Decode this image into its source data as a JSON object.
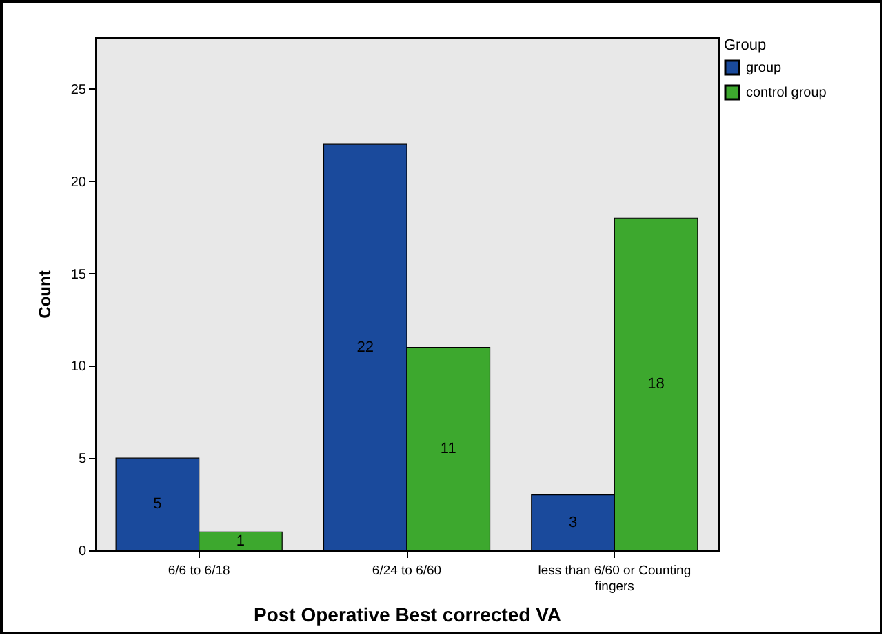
{
  "chart_data": {
    "type": "bar",
    "xlabel": "Post Operative Best corrected VA",
    "ylabel": "Count",
    "legend_title": "Group",
    "categories": [
      "6/6 to 6/18",
      "6/24 to 6/60",
      "less than 6/60 or Counting fingers"
    ],
    "series": [
      {
        "name": "group",
        "color": "#1a4a9c",
        "values": [
          5,
          22,
          3
        ]
      },
      {
        "name": "control group",
        "color": "#3da82e",
        "values": [
          1,
          11,
          18
        ]
      }
    ],
    "ylim": [
      0,
      27.8
    ],
    "yticks": [
      0,
      5,
      10,
      15,
      20,
      25
    ],
    "data_labels": true,
    "legend": "top right",
    "grid": false
  }
}
